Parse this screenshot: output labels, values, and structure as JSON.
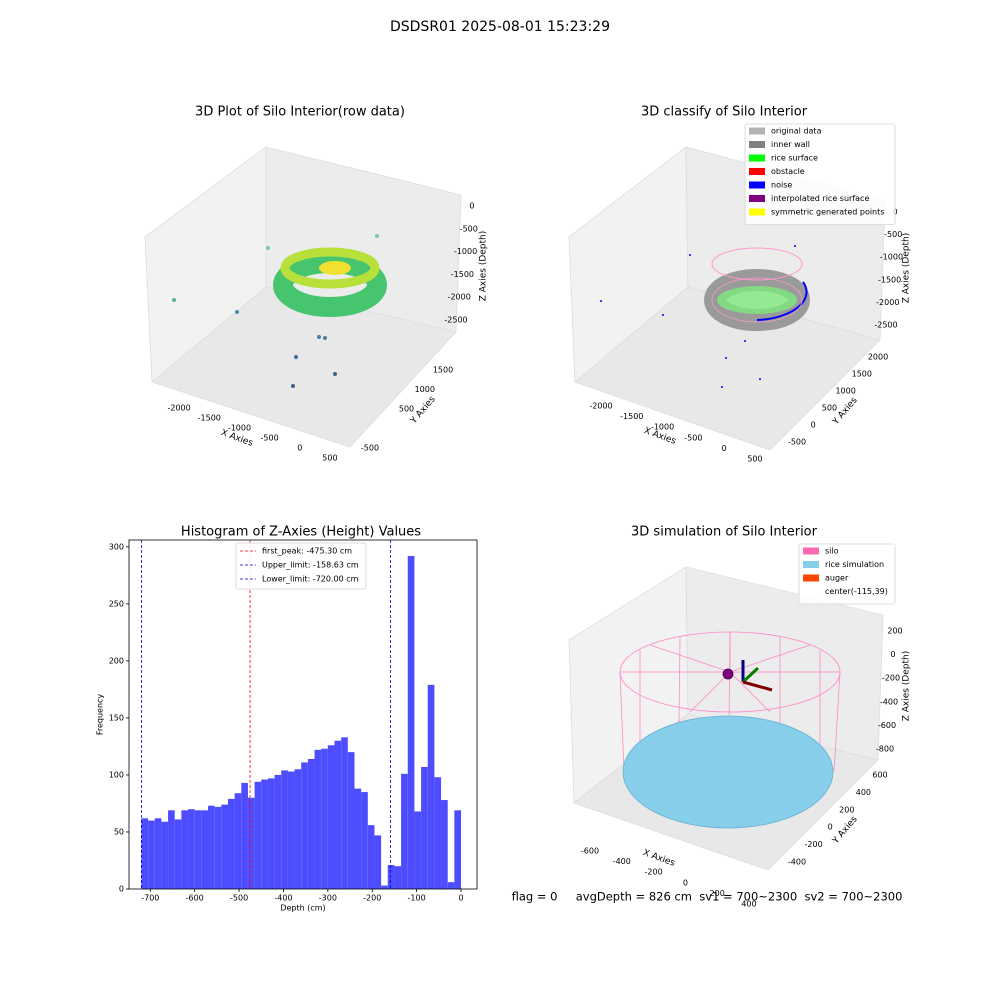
{
  "title": "DSDSR01 2025-08-01 15:23:29",
  "footer": "flag = 0     avgDepth = 826 cm  sv1 = 700~2300  sv2 = 700~2300",
  "chart_data": [
    {
      "type": "scatter3d",
      "title": "3D Plot of Silo Interior(row data)",
      "xlabel": "X Axies",
      "ylabel": "Y Axies",
      "zlabel": "Z Axies (Depth)",
      "xlim": [
        -2300,
        650
      ],
      "xticks": [
        -2000,
        -1500,
        -1000,
        -500,
        0,
        500
      ],
      "ylim": [
        -700,
        1900
      ],
      "yticks": [
        -500,
        500,
        1000,
        1500
      ],
      "zlim": [
        -2800,
        100
      ],
      "zticks": [
        0,
        -500,
        -1000,
        -1500,
        -2000,
        -2500
      ]
    },
    {
      "type": "scatter3d",
      "title": "3D classify of Silo Interior",
      "xlabel": "X Axies",
      "ylabel": "Y Axies",
      "zlabel": "Z Axies (Depth)",
      "xlim": [
        -2300,
        650
      ],
      "xticks": [
        -2000,
        -1500,
        -1000,
        -500,
        0,
        500
      ],
      "ylim": [
        -800,
        2200
      ],
      "yticks": [
        -500,
        0,
        500,
        1000,
        1500,
        2000
      ],
      "zlim": [
        -2800,
        100
      ],
      "zticks": [
        0,
        -500,
        -1000,
        -1500,
        -2000,
        -2500
      ],
      "legend": [
        {
          "name": "original data",
          "color": "#b3b3b3"
        },
        {
          "name": "inner wall",
          "color": "#808080"
        },
        {
          "name": "rice surface",
          "color": "#00ff00"
        },
        {
          "name": "obstacle",
          "color": "#ff0000"
        },
        {
          "name": "noise",
          "color": "#0000ff"
        },
        {
          "name": "interpolated rice surface",
          "color": "#800080"
        },
        {
          "name": "symmetric generated points",
          "color": "#ffff00"
        }
      ]
    },
    {
      "type": "histogram",
      "title": "Histogram of Z-Axies (Height) Values",
      "xlabel": "Depth (cm)",
      "ylabel": "Frequency",
      "color": "#4d4dff",
      "bins": [
        -720,
        -705,
        -690,
        -675,
        -660,
        -645,
        -630,
        -615,
        -600,
        -585,
        -570,
        -555,
        -540,
        -525,
        -510,
        -495,
        -480,
        -465,
        -450,
        -435,
        -420,
        -405,
        -390,
        -375,
        -360,
        -345,
        -330,
        -315,
        -300,
        -285,
        -270,
        -255,
        -240,
        -225,
        -210,
        -195,
        -180,
        -165,
        -150,
        -135,
        -120,
        -105,
        -90,
        -75,
        -60,
        -45,
        -30,
        -15,
        0
      ],
      "counts": [
        62,
        60,
        62,
        59,
        69,
        61,
        69,
        70,
        69,
        69,
        73,
        72,
        74,
        79,
        84,
        93,
        80,
        94,
        96,
        97,
        100,
        104,
        103,
        105,
        111,
        114,
        122,
        123,
        126,
        130,
        133,
        120,
        88,
        85,
        56,
        47,
        3,
        21,
        20,
        101,
        292,
        68,
        107,
        179,
        98,
        78,
        6,
        69
      ],
      "xlim": [
        -748,
        36
      ],
      "xticks": [
        -700,
        -600,
        -500,
        -400,
        -300,
        -200,
        -100,
        0
      ],
      "ylim": [
        0,
        306
      ],
      "yticks": [
        0,
        50,
        100,
        150,
        200,
        250,
        300
      ],
      "vlines": [
        {
          "label": "first_peak: -475.30 cm",
          "value": -475.3,
          "color": "#ff0000"
        },
        {
          "label": "Upper_limit: -158.63 cm",
          "value": -158.63,
          "color": "#0000cc"
        },
        {
          "label": "Lower_limit: -720.00 cm",
          "value": -720.0,
          "color": "#0000cc"
        }
      ]
    },
    {
      "type": "surface3d",
      "title": "3D simulation of Silo Interior",
      "xlabel": "X Axies",
      "ylabel": "Y Axies",
      "zlabel": "Z Axies (Depth)",
      "xlim": [
        -700,
        480
      ],
      "xticks": [
        -600,
        -400,
        -200,
        0,
        200,
        400
      ],
      "ylim": [
        -500,
        700
      ],
      "yticks": [
        -400,
        -200,
        0,
        200,
        400,
        600
      ],
      "zlim": [
        -900,
        300
      ],
      "zticks": [
        200,
        0,
        -200,
        -400,
        -600,
        -800
      ],
      "legend": [
        {
          "name": "silo",
          "color": "#ff69b4"
        },
        {
          "name": "rice simulation",
          "color": "#87ceeb"
        },
        {
          "name": "auger",
          "color": "#ff4500"
        },
        {
          "name": "center(-115,39)",
          "color": "#ffffff"
        }
      ]
    }
  ]
}
